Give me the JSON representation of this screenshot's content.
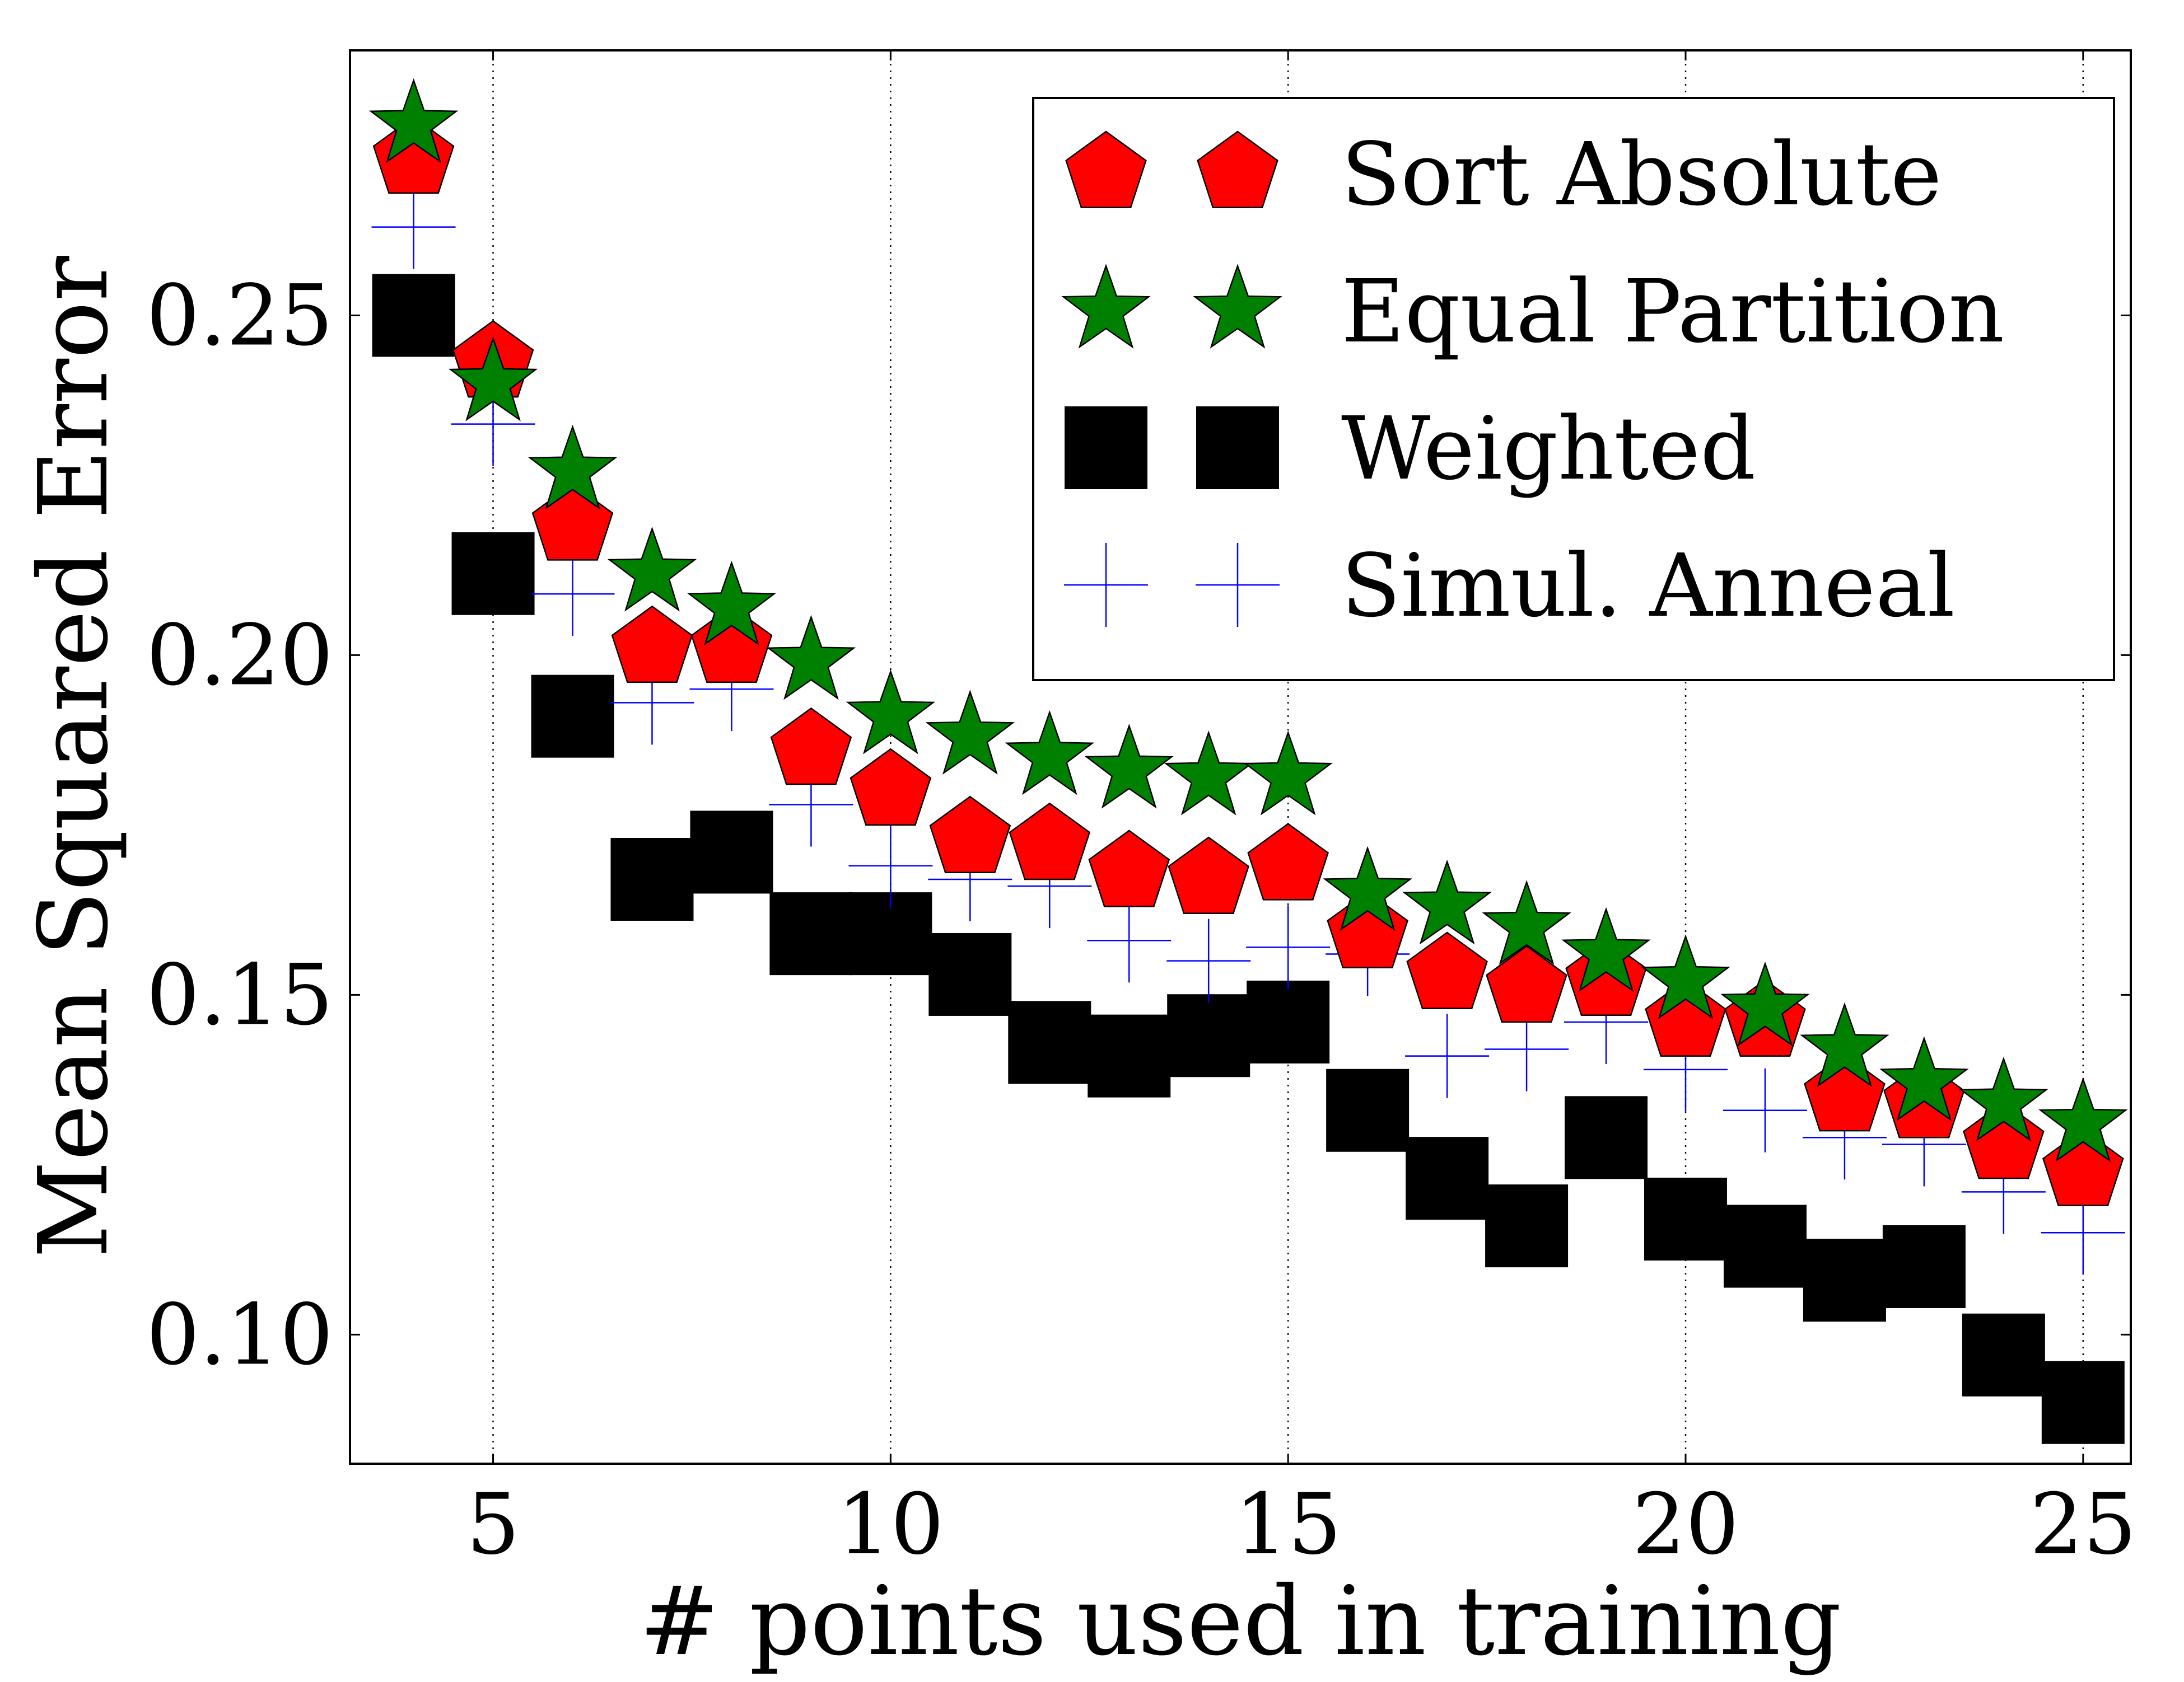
{
  "chart_data": {
    "type": "scatter",
    "xlabel": "# points used in training",
    "ylabel": "Mean Squared Error",
    "xlim": [
      3.2,
      25.6
    ],
    "ylim": [
      0.081,
      0.289
    ],
    "xticks": [
      5,
      10,
      15,
      20,
      25
    ],
    "xtick_labels": [
      "5",
      "10",
      "15",
      "20",
      "25"
    ],
    "yticks": [
      0.1,
      0.15,
      0.2,
      0.25
    ],
    "ytick_labels": [
      "0.10",
      "0.15",
      "0.20",
      "0.25"
    ],
    "grid": "vertical dotted at x ticks",
    "legend_position": "top-right",
    "x": [
      4,
      5,
      6,
      7,
      8,
      9,
      10,
      11,
      12,
      13,
      14,
      15,
      16,
      17,
      18,
      19,
      20,
      21,
      22,
      23,
      24,
      25
    ],
    "series": [
      {
        "name": "Sort Absolute",
        "marker": "pentagon",
        "color": "#ff0000",
        "values": [
          0.273,
          0.243,
          0.219,
          0.201,
          0.201,
          0.186,
          0.18,
          0.173,
          0.172,
          0.168,
          0.167,
          0.169,
          0.159,
          0.153,
          0.151,
          0.152,
          0.146,
          0.146,
          0.135,
          0.134,
          0.128,
          0.124
        ]
      },
      {
        "name": "Equal Partition",
        "marker": "star",
        "color": "#008000",
        "values": [
          0.278,
          0.24,
          0.227,
          0.212,
          0.207,
          0.199,
          0.191,
          0.188,
          0.185,
          0.183,
          0.182,
          0.182,
          0.165,
          0.163,
          0.16,
          0.156,
          0.152,
          0.148,
          0.142,
          0.137,
          0.134,
          0.131
        ]
      },
      {
        "name": "Weighted",
        "marker": "square",
        "color": "#000000",
        "values": [
          0.25,
          0.212,
          0.191,
          0.167,
          0.171,
          0.159,
          0.159,
          0.153,
          0.143,
          0.141,
          0.144,
          0.146,
          0.133,
          0.123,
          0.116,
          0.129,
          0.117,
          0.113,
          0.108,
          0.11,
          0.097,
          0.09
        ]
      },
      {
        "name": "Simul. Anneal",
        "marker": "plus",
        "color": "#0000ff",
        "values": [
          0.263,
          0.234,
          0.209,
          0.193,
          0.195,
          0.178,
          0.169,
          0.167,
          0.166,
          0.158,
          0.155,
          0.157,
          0.156,
          0.141,
          0.142,
          0.146,
          0.139,
          0.133,
          0.129,
          0.128,
          0.121,
          0.115
        ]
      }
    ]
  }
}
